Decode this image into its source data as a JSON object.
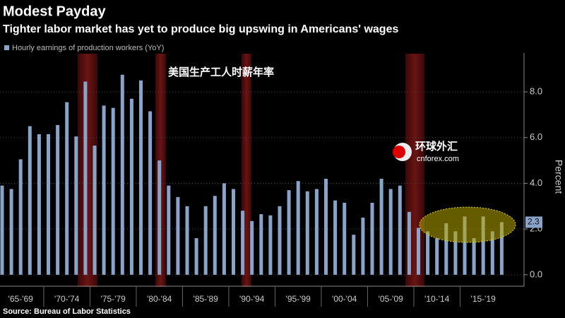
{
  "chart_data": {
    "type": "bar",
    "title": "Modest Payday",
    "subtitle": "Tighter labor market has yet to produce big upswing in Americans' wages",
    "annotation": "美国生产工人时薪年率",
    "watermark": "环球外汇",
    "watermark_url": "cnforex.com",
    "source": "Source: Bureau of Labor Statistics",
    "y_label": "Percent",
    "series_name": "Hourly earnings of production workers (YoY)",
    "color": "#8aa3c8",
    "categories": [
      null,
      null,
      "'65-'69",
      null,
      null,
      null,
      null,
      "'70-'74",
      null,
      null,
      null,
      null,
      "'75-'79",
      null,
      null,
      null,
      null,
      "'80-'84",
      null,
      null,
      null,
      null,
      "'85-'89",
      null,
      null,
      null,
      null,
      "'90-'94",
      null,
      null,
      null,
      null,
      "'95-'99",
      null,
      null,
      null,
      null,
      "'00-'04",
      null,
      null,
      null,
      null,
      "'05-'09",
      null,
      null,
      null,
      null,
      "'10-'14",
      null,
      null,
      null,
      null,
      "'15-'19",
      null,
      null
    ],
    "values": [
      3.9,
      3.75,
      5.05,
      6.5,
      6.15,
      6.15,
      6.55,
      7.55,
      6.05,
      8.45,
      5.65,
      7.4,
      7.3,
      8.75,
      7.7,
      8.5,
      7.15,
      5.0,
      3.9,
      3.4,
      3.0,
      1.6,
      3.0,
      3.45,
      4.0,
      3.75,
      2.8,
      2.35,
      2.65,
      2.6,
      3.0,
      3.7,
      4.1,
      3.65,
      3.75,
      4.2,
      3.25,
      3.15,
      1.75,
      2.5,
      3.15,
      4.2,
      3.75,
      3.9,
      2.75,
      2.05,
      1.9,
      1.6,
      2.25,
      1.9,
      2.55,
      1.6,
      2.55,
      1.9,
      2.3
    ],
    "ylim": [
      -0.5,
      9.7
    ],
    "yticks": [
      {
        "value": 0,
        "label": "0.0"
      },
      {
        "value": 2,
        "label": "2.0"
      },
      {
        "value": 4,
        "label": "4.0"
      },
      {
        "value": 6,
        "label": "6.0"
      },
      {
        "value": 8,
        "label": "8.0"
      }
    ],
    "grid": true
  }
}
